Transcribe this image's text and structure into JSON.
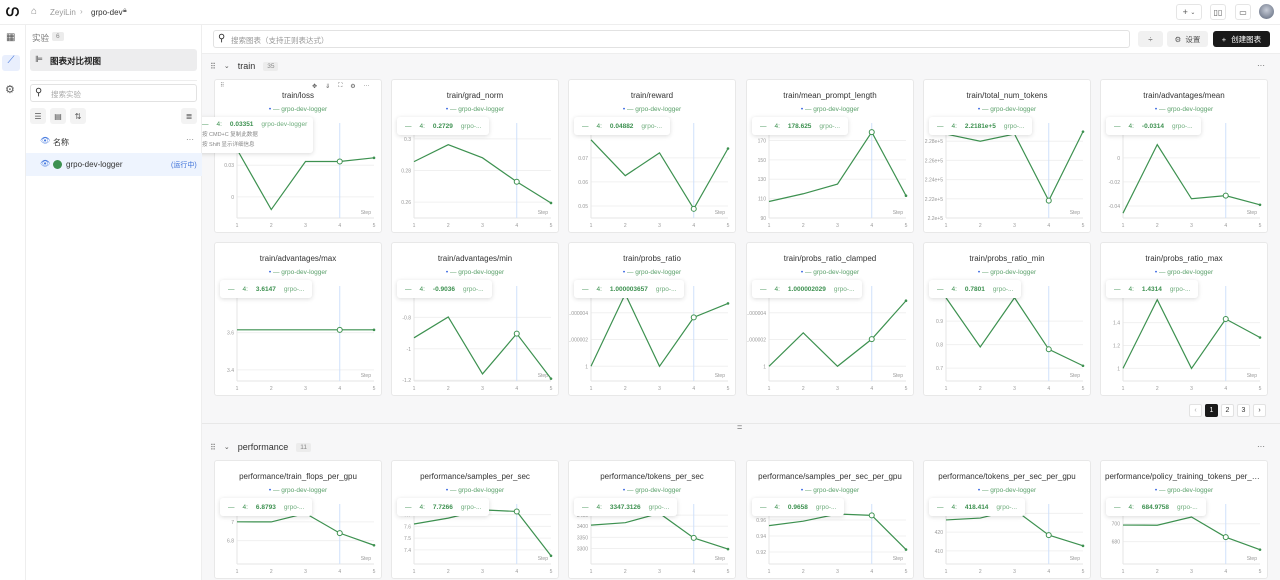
{
  "topbar": {
    "breadcrumb_user": "ZeyiLin",
    "breadcrumb_project": "grpo-dev",
    "add_label": "+"
  },
  "sidebar": {
    "experiments_label": "实验",
    "experiments_count": "6",
    "view_label": "图表对比视图",
    "search_placeholder": "搜索实验",
    "column_name": "名称",
    "runs": [
      {
        "name": "grpo-dev-logger",
        "status": "(运行中)",
        "color": "#3d9150"
      }
    ]
  },
  "toolbar": {
    "search_placeholder": "搜索图表（支持正则表达式）",
    "settings_label": "设置",
    "create_label": "创建图表"
  },
  "tooltip_hint": {
    "line1": "按 CMD+C 复制此数据",
    "line2": "按 Shift 显示详细信息"
  },
  "colors": {
    "series": "#3d9150",
    "accent": "#1a1a1a",
    "highlight": "#cfe0fb"
  },
  "pagination": {
    "pages": [
      "1",
      "2",
      "3"
    ],
    "current": "1"
  },
  "divider_glyph": "=",
  "sections": [
    {
      "name": "train",
      "count": "35",
      "charts": [
        {
          "title": "train/loss",
          "legend": "grpo-dev-logger",
          "tooltip": {
            "step": "4:",
            "value": "0.03351",
            "run": "grpo-dev-logger"
          },
          "x": [
            1,
            2,
            3,
            4,
            5
          ],
          "y": [
            0.045,
            -0.012,
            0.0335,
            0.03351,
            0.037
          ],
          "ylim": [
            -0.02,
            0.07
          ],
          "yticks": [
            "0",
            "0.03"
          ],
          "yticks_v": [
            0,
            0.03
          ],
          "xlabel": "Step"
        },
        {
          "title": "train/grad_norm",
          "legend": "grpo-dev-logger",
          "tooltip": {
            "step": "4:",
            "value": "0.2729",
            "run": "grpo-..."
          },
          "x": [
            1,
            2,
            3,
            4,
            5
          ],
          "y": [
            0.2856,
            0.2963,
            0.288,
            0.2729,
            0.2595
          ],
          "ylim": [
            0.25,
            0.31
          ],
          "yticks": [
            "0.26",
            "0.28",
            "0.3"
          ],
          "yticks_v": [
            0.26,
            0.28,
            0.3
          ],
          "xlabel": "Step"
        },
        {
          "title": "train/reward",
          "legend": "grpo-dev-logger",
          "tooltip": {
            "step": "4:",
            "value": "0.04882",
            "run": "grpo-..."
          },
          "x": [
            1,
            2,
            3,
            4,
            5
          ],
          "y": [
            0.0775,
            0.0626,
            0.0721,
            0.04882,
            0.0739
          ],
          "ylim": [
            0.045,
            0.0845
          ],
          "yticks": [
            "0.05",
            "0.06",
            "0.07"
          ],
          "yticks_v": [
            0.05,
            0.06,
            0.07
          ],
          "xlabel": "Step"
        },
        {
          "title": "train/mean_prompt_length",
          "legend": "grpo-dev-logger",
          "tooltip": {
            "step": "4:",
            "value": "178.625",
            "run": "grpo-..."
          },
          "x": [
            1,
            2,
            3,
            4,
            5
          ],
          "y": [
            107,
            115,
            125,
            178.625,
            113
          ],
          "ylim": [
            90,
            188
          ],
          "yticks": [
            "90",
            "110",
            "130",
            "150",
            "170"
          ],
          "yticks_v": [
            90,
            110,
            130,
            150,
            170
          ],
          "xlabel": "Step"
        },
        {
          "title": "train/total_num_tokens",
          "legend": "grpo-dev-logger",
          "tooltip": {
            "step": "4:",
            "value": "2.2181e+5",
            "run": "grpo-..."
          },
          "x": [
            1,
            2,
            3,
            4,
            5
          ],
          "y": [
            228750,
            228000,
            228750,
            221810,
            229000
          ],
          "ylim": [
            220000,
            229900
          ],
          "yticks": [
            "2.2e+5",
            "2.22e+5",
            "2.24e+5",
            "2.26e+5",
            "2.28e+5"
          ],
          "yticks_v": [
            220000,
            222000,
            224000,
            226000,
            228000
          ],
          "xlabel": "Step"
        },
        {
          "title": "train/advantages/mean",
          "legend": "grpo-dev-logger",
          "tooltip": {
            "step": "4:",
            "value": "-0.0314",
            "run": "grpo-..."
          },
          "x": [
            1,
            2,
            3,
            4,
            5
          ],
          "y": [
            -0.046,
            0.011,
            -0.034,
            -0.0314,
            -0.039
          ],
          "ylim": [
            -0.05,
            0.029
          ],
          "yticks": [
            "-0.04",
            "-0.02",
            "0"
          ],
          "yticks_v": [
            -0.04,
            -0.02,
            0
          ],
          "xlabel": "Step"
        },
        {
          "title": "train/advantages/max",
          "legend": "grpo-dev-logger",
          "tooltip": {
            "step": "4:",
            "value": "3.6147",
            "run": "grpo-..."
          },
          "x": [
            1,
            2,
            3,
            4,
            5
          ],
          "y": [
            3.6147,
            3.6147,
            3.6147,
            3.6147,
            3.6147
          ],
          "ylim": [
            3.34,
            3.85
          ],
          "yticks": [
            "3.4",
            "3.6"
          ],
          "yticks_v": [
            3.4,
            3.6
          ],
          "xlabel": "Step"
        },
        {
          "title": "train/advantages/min",
          "legend": "grpo-dev-logger",
          "tooltip": {
            "step": "4:",
            "value": "-0.9036",
            "run": "grpo-..."
          },
          "x": [
            1,
            2,
            3,
            4,
            5
          ],
          "y": [
            -0.93,
            -0.797,
            -1.16,
            -0.9036,
            -1.19
          ],
          "ylim": [
            -1.205,
            -0.6
          ],
          "yticks": [
            "-1.2",
            "-1",
            "-0.8"
          ],
          "yticks_v": [
            -1.2,
            -1,
            -0.8
          ],
          "xlabel": "Step"
        },
        {
          "title": "train/probs_ratio",
          "legend": "grpo-dev-logger",
          "tooltip": {
            "step": "4:",
            "value": "1.000003657",
            "run": "grpo-..."
          },
          "x": [
            1,
            2,
            3,
            4,
            5
          ],
          "y": [
            1,
            1.0000054,
            1,
            1.000003657,
            1.0000047
          ],
          "ylim": [
            0.9999989,
            1.000006
          ],
          "yticks": [
            "1",
            "1.000002",
            "1.000004"
          ],
          "yticks_v": [
            1,
            1.000002,
            1.000004
          ],
          "xlabel": "Step"
        },
        {
          "title": "train/probs_ratio_clamped",
          "legend": "grpo-dev-logger",
          "tooltip": {
            "step": "4:",
            "value": "1.000002029",
            "run": "grpo-..."
          },
          "x": [
            1,
            2,
            3,
            4,
            5
          ],
          "y": [
            1,
            1.0000025,
            1,
            1.000002029,
            1.0000049
          ],
          "ylim": [
            0.9999989,
            1.000006
          ],
          "yticks": [
            "1",
            "1.000002",
            "1.000004"
          ],
          "yticks_v": [
            1,
            1.000002,
            1.000004
          ],
          "xlabel": "Step"
        },
        {
          "title": "train/probs_ratio_min",
          "legend": "grpo-dev-logger",
          "tooltip": {
            "step": "4:",
            "value": "0.7801",
            "run": "grpo-..."
          },
          "x": [
            1,
            2,
            3,
            4,
            5
          ],
          "y": [
            1,
            0.79,
            1,
            0.7801,
            0.71
          ],
          "ylim": [
            0.645,
            1.05
          ],
          "yticks": [
            "0.7",
            "0.8",
            "0.9"
          ],
          "yticks_v": [
            0.7,
            0.8,
            0.9
          ],
          "xlabel": "Step"
        },
        {
          "title": "train/probs_ratio_max",
          "legend": "grpo-dev-logger",
          "tooltip": {
            "step": "4:",
            "value": "1.4314",
            "run": "grpo-..."
          },
          "x": [
            1,
            2,
            3,
            4,
            5
          ],
          "y": [
            1,
            1.6,
            1,
            1.4314,
            1.27
          ],
          "ylim": [
            0.89,
            1.72
          ],
          "yticks": [
            "1",
            "1.2",
            "1.4"
          ],
          "yticks_v": [
            1,
            1.2,
            1.4
          ],
          "xlabel": "Step"
        }
      ]
    },
    {
      "name": "performance",
      "count": "11",
      "charts": [
        {
          "title": "performance/train_flops_per_gpu",
          "legend": "grpo-dev-logger",
          "tooltip": {
            "step": "4:",
            "value": "6.8793",
            "run": "grpo-..."
          },
          "x": [
            1,
            2,
            3,
            4,
            5
          ],
          "y": [
            7.0,
            6.999,
            7.09,
            6.8793,
            6.75
          ],
          "ylim": [
            6.55,
            7.19
          ],
          "yticks": [
            "6.8",
            "7"
          ],
          "yticks_v": [
            6.8,
            7
          ],
          "xlabel": "Step"
        },
        {
          "title": "performance/samples_per_sec",
          "legend": "grpo-dev-logger",
          "tooltip": {
            "step": "4:",
            "value": "7.7266",
            "run": "grpo-..."
          },
          "x": [
            1,
            2,
            3,
            4,
            5
          ],
          "y": [
            7.62,
            7.67,
            7.74,
            7.7266,
            7.35
          ],
          "ylim": [
            7.28,
            7.79
          ],
          "yticks": [
            "7.4",
            "7.5",
            "7.6",
            "7.7"
          ],
          "yticks_v": [
            7.4,
            7.5,
            7.6,
            7.7
          ],
          "xlabel": "Step"
        },
        {
          "title": "performance/tokens_per_sec",
          "legend": "grpo-dev-logger",
          "tooltip": {
            "step": "4:",
            "value": "3347.3126",
            "run": "grpo-..."
          },
          "x": [
            1,
            2,
            3,
            4,
            5
          ],
          "y": [
            3405,
            3416,
            3458,
            3347.3126,
            3297
          ],
          "ylim": [
            3230,
            3500
          ],
          "yticks": [
            "3300",
            "3350",
            "3400",
            "3450"
          ],
          "yticks_v": [
            3300,
            3350,
            3400,
            3450
          ],
          "xlabel": "Step"
        },
        {
          "title": "performance/samples_per_sec_per_gpu",
          "legend": "grpo-dev-logger",
          "tooltip": {
            "step": "4:",
            "value": "0.9658",
            "run": "grpo-..."
          },
          "x": [
            1,
            2,
            3,
            4,
            5
          ],
          "y": [
            0.953,
            0.9585,
            0.9675,
            0.9658,
            0.923
          ],
          "ylim": [
            0.905,
            0.98
          ],
          "yticks": [
            "0.92",
            "0.94",
            "0.96"
          ],
          "yticks_v": [
            0.92,
            0.94,
            0.96
          ],
          "xlabel": "Step"
        },
        {
          "title": "performance/tokens_per_sec_per_gpu",
          "legend": "grpo-dev-logger",
          "tooltip": {
            "step": "4:",
            "value": "418.414",
            "run": "grpo-..."
          },
          "x": [
            1,
            2,
            3,
            4,
            5
          ],
          "y": [
            426.5,
            427.5,
            432,
            418.414,
            412.7
          ],
          "ylim": [
            403,
            435
          ],
          "yticks": [
            "410",
            "420",
            "430"
          ],
          "yticks_v": [
            410,
            420,
            430
          ],
          "xlabel": "Step"
        },
        {
          "title": "performance/policy_training_tokens_per_se...",
          "legend": "grpo-dev-logger",
          "tooltip": {
            "step": "4:",
            "value": "684.9758",
            "run": "grpo-..."
          },
          "x": [
            1,
            2,
            3,
            4,
            5
          ],
          "y": [
            698.5,
            698.3,
            707.5,
            684.9758,
            671
          ],
          "ylim": [
            655,
            722
          ],
          "yticks": [
            "680",
            "700"
          ],
          "yticks_v": [
            680,
            700
          ],
          "xlabel": "Step"
        }
      ]
    }
  ]
}
